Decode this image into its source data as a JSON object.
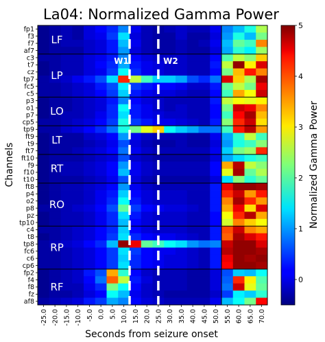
{
  "chart_data": {
    "type": "heatmap",
    "title": "La04: Normalized Gamma Power",
    "xlabel": "Seconds from seizure onset",
    "ylabel": "Channels",
    "colorbar_label": "Normalized Gamma Power",
    "colormap": "jet",
    "vmin": -0.5,
    "vmax": 5,
    "colorbar_ticks": [
      0,
      1,
      2,
      3,
      4,
      5
    ],
    "x_ticks": [
      "-25.0",
      "-20.0",
      "-15.0",
      "-10.0",
      "-5.0",
      "0.0",
      "5.0",
      "10.0",
      "15.0",
      "20.0",
      "25.0",
      "30.0",
      "35.0",
      "40.0",
      "45.0",
      "50.0",
      "55.0",
      "60.0",
      "65.0",
      "70.0"
    ],
    "channels": [
      "fp1",
      "f3",
      "f7",
      "af7",
      "c3",
      "t7",
      "cz",
      "tp7",
      "fc5",
      "c5",
      "p3",
      "o1",
      "p7",
      "cp5",
      "tp9",
      "ft9",
      "t9",
      "ft7",
      "ft10",
      "f9",
      "f10",
      "t10",
      "ft8",
      "p4",
      "o2",
      "p8",
      "pz",
      "tp10",
      "c4",
      "t8",
      "tp8",
      "fc6",
      "c6",
      "cp6",
      "fp2",
      "f4",
      "f8",
      "fz",
      "af8"
    ],
    "regions": [
      {
        "label": "LF",
        "start": 0,
        "end": 3
      },
      {
        "label": "LP",
        "start": 4,
        "end": 9
      },
      {
        "label": "LO",
        "start": 10,
        "end": 13
      },
      {
        "label": "LT",
        "start": 14,
        "end": 17
      },
      {
        "label": "RT",
        "start": 18,
        "end": 21
      },
      {
        "label": "RO",
        "start": 22,
        "end": 27
      },
      {
        "label": "RP",
        "start": 28,
        "end": 33
      },
      {
        "label": "RF",
        "start": 34,
        "end": 38
      }
    ],
    "windows": [
      {
        "label": "W1",
        "x": 12.5
      },
      {
        "label": "W2",
        "x": 25.0
      }
    ],
    "values": [
      [
        -0.4,
        -0.3,
        -0.2,
        -0.3,
        0.0,
        0.2,
        0.4,
        0.9,
        0.1,
        -0.2,
        -0.3,
        -0.2,
        -0.1,
        -0.2,
        -0.2,
        0.1,
        0.9,
        1.2,
        1.7,
        2.5
      ],
      [
        -0.4,
        -0.3,
        -0.2,
        -0.3,
        0.0,
        0.1,
        0.5,
        1.4,
        0.0,
        -0.2,
        -0.3,
        -0.3,
        -0.1,
        -0.3,
        -0.3,
        0.0,
        1.0,
        1.7,
        1.2,
        2.2
      ],
      [
        -0.4,
        -0.3,
        -0.2,
        -0.2,
        -0.1,
        0.0,
        0.3,
        1.2,
        0.1,
        -0.2,
        -0.3,
        -0.3,
        -0.2,
        -0.3,
        -0.2,
        0.1,
        1.2,
        2.1,
        1.9,
        3.6
      ],
      [
        -0.4,
        -0.3,
        -0.3,
        -0.3,
        -0.1,
        0.0,
        0.3,
        1.0,
        0.0,
        -0.2,
        -0.3,
        -0.3,
        -0.2,
        -0.3,
        -0.3,
        0.0,
        1.1,
        1.8,
        1.5,
        2.4
      ],
      [
        -0.3,
        -0.3,
        -0.2,
        -0.2,
        0.0,
        0.1,
        0.3,
        0.9,
        0.2,
        0.0,
        -0.1,
        -0.1,
        -0.1,
        -0.2,
        -0.2,
        0.2,
        2.0,
        2.6,
        2.3,
        3.2
      ],
      [
        -0.4,
        -0.3,
        -0.2,
        -0.2,
        0.0,
        0.2,
        0.4,
        1.1,
        0.3,
        0.1,
        0.0,
        -0.1,
        -0.1,
        -0.2,
        -0.2,
        0.3,
        2.6,
        4.9,
        3.0,
        4.5
      ],
      [
        -0.4,
        -0.3,
        -0.2,
        -0.2,
        0.0,
        0.1,
        0.5,
        1.6,
        0.4,
        0.1,
        0.0,
        -0.1,
        -0.1,
        -0.2,
        -0.2,
        0.2,
        2.2,
        3.3,
        4.2,
        3.6
      ],
      [
        -0.3,
        -0.2,
        -0.1,
        0.1,
        0.3,
        0.6,
        1.4,
        4.1,
        2.6,
        1.9,
        1.3,
        1.3,
        1.1,
        0.6,
        0.4,
        0.8,
        4.5,
        3.2,
        2.5,
        4.8
      ],
      [
        -0.3,
        -0.3,
        -0.2,
        -0.1,
        0.0,
        0.3,
        0.6,
        1.5,
        0.5,
        0.3,
        0.2,
        0.2,
        0.1,
        -0.1,
        -0.1,
        0.3,
        2.1,
        2.6,
        2.2,
        4.4
      ],
      [
        -0.3,
        -0.3,
        -0.2,
        -0.1,
        0.0,
        0.2,
        0.5,
        1.3,
        0.3,
        0.1,
        0.0,
        0.0,
        -0.1,
        -0.2,
        -0.2,
        0.2,
        1.9,
        3.4,
        2.9,
        4.6
      ],
      [
        -0.4,
        -0.3,
        -0.3,
        -0.2,
        -0.1,
        0.0,
        0.3,
        0.9,
        0.2,
        0.0,
        -0.1,
        -0.2,
        -0.2,
        -0.2,
        -0.2,
        0.3,
        2.6,
        2.9,
        2.8,
        3.0
      ],
      [
        -0.4,
        -0.3,
        -0.3,
        -0.2,
        -0.1,
        0.0,
        0.4,
        1.6,
        0.3,
        0.1,
        -0.1,
        -0.2,
        -0.1,
        -0.2,
        -0.2,
        0.2,
        2.2,
        4.6,
        4.4,
        3.6
      ],
      [
        -0.4,
        -0.3,
        -0.2,
        -0.2,
        -0.1,
        0.1,
        0.4,
        1.4,
        0.3,
        0.1,
        0.0,
        -0.1,
        -0.1,
        -0.2,
        -0.2,
        0.2,
        1.9,
        4.3,
        4.8,
        3.3
      ],
      [
        -0.3,
        -0.3,
        -0.2,
        -0.1,
        0.0,
        0.2,
        0.5,
        1.7,
        0.5,
        0.3,
        0.1,
        0.1,
        0.0,
        -0.1,
        -0.2,
        0.3,
        2.3,
        4.1,
        4.6,
        3.1
      ],
      [
        -0.3,
        -0.3,
        -0.1,
        0.0,
        0.2,
        0.4,
        0.8,
        1.7,
        2.2,
        2.8,
        3.2,
        1.6,
        1.3,
        1.1,
        0.8,
        0.8,
        1.9,
        4.2,
        4.7,
        3.5
      ],
      [
        -0.4,
        -0.3,
        -0.3,
        -0.3,
        -0.1,
        0.0,
        0.2,
        1.0,
        0.1,
        -0.1,
        -0.2,
        -0.2,
        -0.2,
        -0.3,
        -0.3,
        0.1,
        1.1,
        1.8,
        2.6,
        1.9
      ],
      [
        -0.4,
        -0.3,
        -0.3,
        -0.3,
        -0.2,
        -0.1,
        0.1,
        0.6,
        0.0,
        -0.2,
        -0.3,
        -0.3,
        -0.2,
        -0.3,
        -0.3,
        0.0,
        1.0,
        1.7,
        1.9,
        2.3
      ],
      [
        -0.4,
        -0.3,
        -0.3,
        -0.2,
        -0.1,
        0.0,
        0.2,
        0.8,
        0.1,
        -0.1,
        -0.2,
        -0.2,
        -0.2,
        -0.2,
        -0.2,
        0.1,
        1.3,
        2.2,
        2.4,
        4.1
      ],
      [
        -0.4,
        -0.3,
        -0.3,
        -0.3,
        -0.2,
        -0.1,
        0.0,
        0.6,
        -0.1,
        -0.2,
        -0.3,
        -0.3,
        -0.3,
        -0.3,
        -0.3,
        0.0,
        1.1,
        1.4,
        1.7,
        1.9
      ],
      [
        -0.4,
        -0.3,
        -0.2,
        -0.2,
        -0.1,
        0.0,
        0.2,
        1.0,
        0.1,
        -0.1,
        -0.2,
        -0.2,
        -0.2,
        -0.2,
        -0.2,
        0.2,
        3.4,
        4.7,
        2.6,
        2.3
      ],
      [
        -0.4,
        -0.3,
        -0.2,
        -0.2,
        -0.1,
        0.0,
        0.2,
        1.2,
        0.1,
        -0.1,
        -0.2,
        -0.2,
        -0.2,
        -0.2,
        -0.2,
        0.2,
        2.8,
        4.8,
        2.1,
        2.5
      ],
      [
        -0.4,
        -0.3,
        -0.3,
        -0.3,
        -0.2,
        -0.1,
        0.1,
        0.6,
        0.0,
        -0.2,
        -0.3,
        -0.3,
        -0.3,
        -0.3,
        -0.3,
        0.0,
        1.4,
        2.3,
        1.8,
        2.1
      ],
      [
        -0.4,
        -0.3,
        -0.2,
        -0.2,
        -0.1,
        0.0,
        0.2,
        1.0,
        0.1,
        -0.1,
        -0.2,
        -0.2,
        -0.2,
        -0.2,
        -0.2,
        0.3,
        4.4,
        4.9,
        4.9,
        4.8
      ],
      [
        -0.4,
        -0.3,
        -0.2,
        -0.2,
        -0.1,
        0.1,
        0.3,
        1.3,
        0.2,
        0.0,
        -0.1,
        -0.1,
        -0.1,
        -0.2,
        -0.2,
        0.3,
        4.1,
        4.6,
        3.5,
        4.2
      ],
      [
        -0.4,
        -0.3,
        -0.2,
        -0.2,
        -0.1,
        0.1,
        0.4,
        1.6,
        0.3,
        0.0,
        -0.1,
        -0.1,
        -0.1,
        -0.2,
        -0.2,
        0.3,
        3.6,
        4.8,
        4.1,
        3.5
      ],
      [
        -0.3,
        -0.3,
        -0.2,
        -0.1,
        0.0,
        0.2,
        0.6,
        2.1,
        0.5,
        0.2,
        0.1,
        0.0,
        0.0,
        -0.1,
        -0.2,
        0.3,
        3.4,
        4.4,
        3.1,
        4.5
      ],
      [
        -0.4,
        -0.3,
        -0.2,
        -0.2,
        -0.1,
        0.1,
        0.4,
        1.4,
        0.3,
        0.0,
        -0.1,
        -0.1,
        -0.1,
        -0.2,
        -0.2,
        0.2,
        2.9,
        4.1,
        4.7,
        3.4
      ],
      [
        -0.4,
        -0.3,
        -0.2,
        -0.2,
        -0.1,
        0.1,
        0.4,
        1.2,
        0.2,
        0.0,
        -0.1,
        -0.1,
        -0.1,
        -0.2,
        -0.2,
        0.2,
        2.7,
        3.6,
        3.2,
        2.9
      ],
      [
        -0.3,
        -0.3,
        -0.2,
        -0.1,
        0.0,
        0.2,
        0.4,
        1.3,
        0.2,
        0.0,
        -0.1,
        -0.1,
        -0.1,
        -0.2,
        -0.2,
        0.3,
        3.9,
        4.6,
        3.6,
        3.4
      ],
      [
        -0.4,
        -0.3,
        -0.2,
        -0.1,
        0.0,
        0.2,
        0.5,
        1.4,
        0.4,
        0.2,
        0.1,
        0.1,
        0.0,
        -0.1,
        -0.2,
        0.3,
        3.8,
        4.8,
        4.5,
        4.2
      ],
      [
        -0.3,
        -0.2,
        -0.1,
        0.0,
        0.2,
        0.4,
        1.2,
        4.9,
        4.4,
        2.1,
        1.9,
        1.6,
        1.4,
        1.0,
        0.8,
        0.9,
        4.6,
        4.9,
        4.9,
        4.5
      ],
      [
        -0.3,
        -0.3,
        -0.2,
        -0.1,
        0.0,
        0.2,
        0.5,
        1.4,
        0.5,
        0.2,
        0.1,
        0.1,
        0.0,
        -0.1,
        -0.2,
        0.3,
        4.7,
        4.9,
        4.9,
        4.8
      ],
      [
        -0.3,
        -0.3,
        -0.2,
        -0.1,
        0.0,
        0.2,
        0.5,
        1.3,
        0.4,
        0.2,
        0.1,
        0.0,
        0.0,
        -0.1,
        -0.2,
        0.3,
        4.4,
        4.9,
        4.8,
        4.9
      ],
      [
        -0.3,
        -0.3,
        -0.2,
        -0.1,
        0.0,
        0.2,
        0.5,
        1.4,
        0.4,
        0.2,
        0.1,
        0.0,
        0.0,
        -0.1,
        -0.2,
        0.3,
        4.3,
        4.9,
        4.9,
        4.8
      ],
      [
        -0.4,
        -0.3,
        -0.2,
        -0.1,
        0.3,
        0.6,
        3.4,
        1.8,
        0.2,
        -0.1,
        -0.2,
        -0.2,
        -0.2,
        -0.3,
        -0.3,
        0.0,
        0.6,
        1.3,
        1.2,
        1.6
      ],
      [
        -0.4,
        -0.3,
        -0.2,
        -0.1,
        0.2,
        0.8,
        3.8,
        2.6,
        0.3,
        0.0,
        -0.2,
        -0.2,
        -0.2,
        -0.3,
        -0.3,
        0.0,
        0.7,
        4.1,
        3.0,
        2.0
      ],
      [
        -0.4,
        -0.3,
        -0.2,
        -0.2,
        0.1,
        0.4,
        2.2,
        1.6,
        0.2,
        -0.1,
        -0.2,
        -0.2,
        -0.2,
        -0.3,
        -0.3,
        0.0,
        0.8,
        4.6,
        2.8,
        2.1
      ],
      [
        -0.4,
        -0.3,
        -0.3,
        -0.2,
        0.0,
        0.2,
        1.6,
        1.2,
        0.1,
        -0.1,
        -0.2,
        -0.3,
        -0.3,
        -0.3,
        -0.3,
        -0.1,
        0.5,
        1.5,
        1.3,
        1.8
      ],
      [
        -0.3,
        -0.2,
        -0.1,
        0.0,
        0.3,
        0.5,
        1.1,
        0.9,
        0.2,
        0.0,
        -0.1,
        -0.2,
        -0.2,
        -0.2,
        -0.2,
        0.1,
        1.2,
        1.6,
        2.2,
        4.3
      ]
    ]
  }
}
